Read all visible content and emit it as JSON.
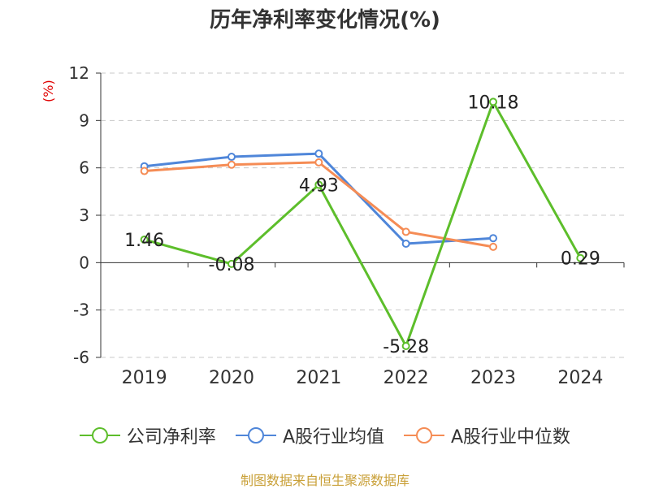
{
  "chart_data": {
    "type": "line",
    "title": "历年净利率变化情况(%)",
    "ylabel": "(%)",
    "ylim": [
      -6,
      12
    ],
    "yticks": [
      -6,
      -3,
      0,
      3,
      6,
      9,
      12
    ],
    "categories": [
      "2019",
      "2020",
      "2021",
      "2022",
      "2023",
      "2024"
    ],
    "grid": true,
    "legend_position": "bottom",
    "series": [
      {
        "name": "公司净利率",
        "color": "#5dbe2b",
        "values": [
          1.46,
          -0.08,
          4.93,
          -5.28,
          10.18,
          0.29
        ],
        "labels": [
          "1.46",
          "-0.08",
          "4.93",
          "-5.28",
          "10.18",
          "0.29"
        ]
      },
      {
        "name": "A股行业均值",
        "color": "#4f86d9",
        "values": [
          6.1,
          6.7,
          6.9,
          1.2,
          1.55,
          null
        ]
      },
      {
        "name": "A股行业中位数",
        "color": "#f58c55",
        "values": [
          5.8,
          6.2,
          6.35,
          1.95,
          1.0,
          null
        ]
      }
    ]
  },
  "source": "制图数据来自恒生聚源数据库"
}
